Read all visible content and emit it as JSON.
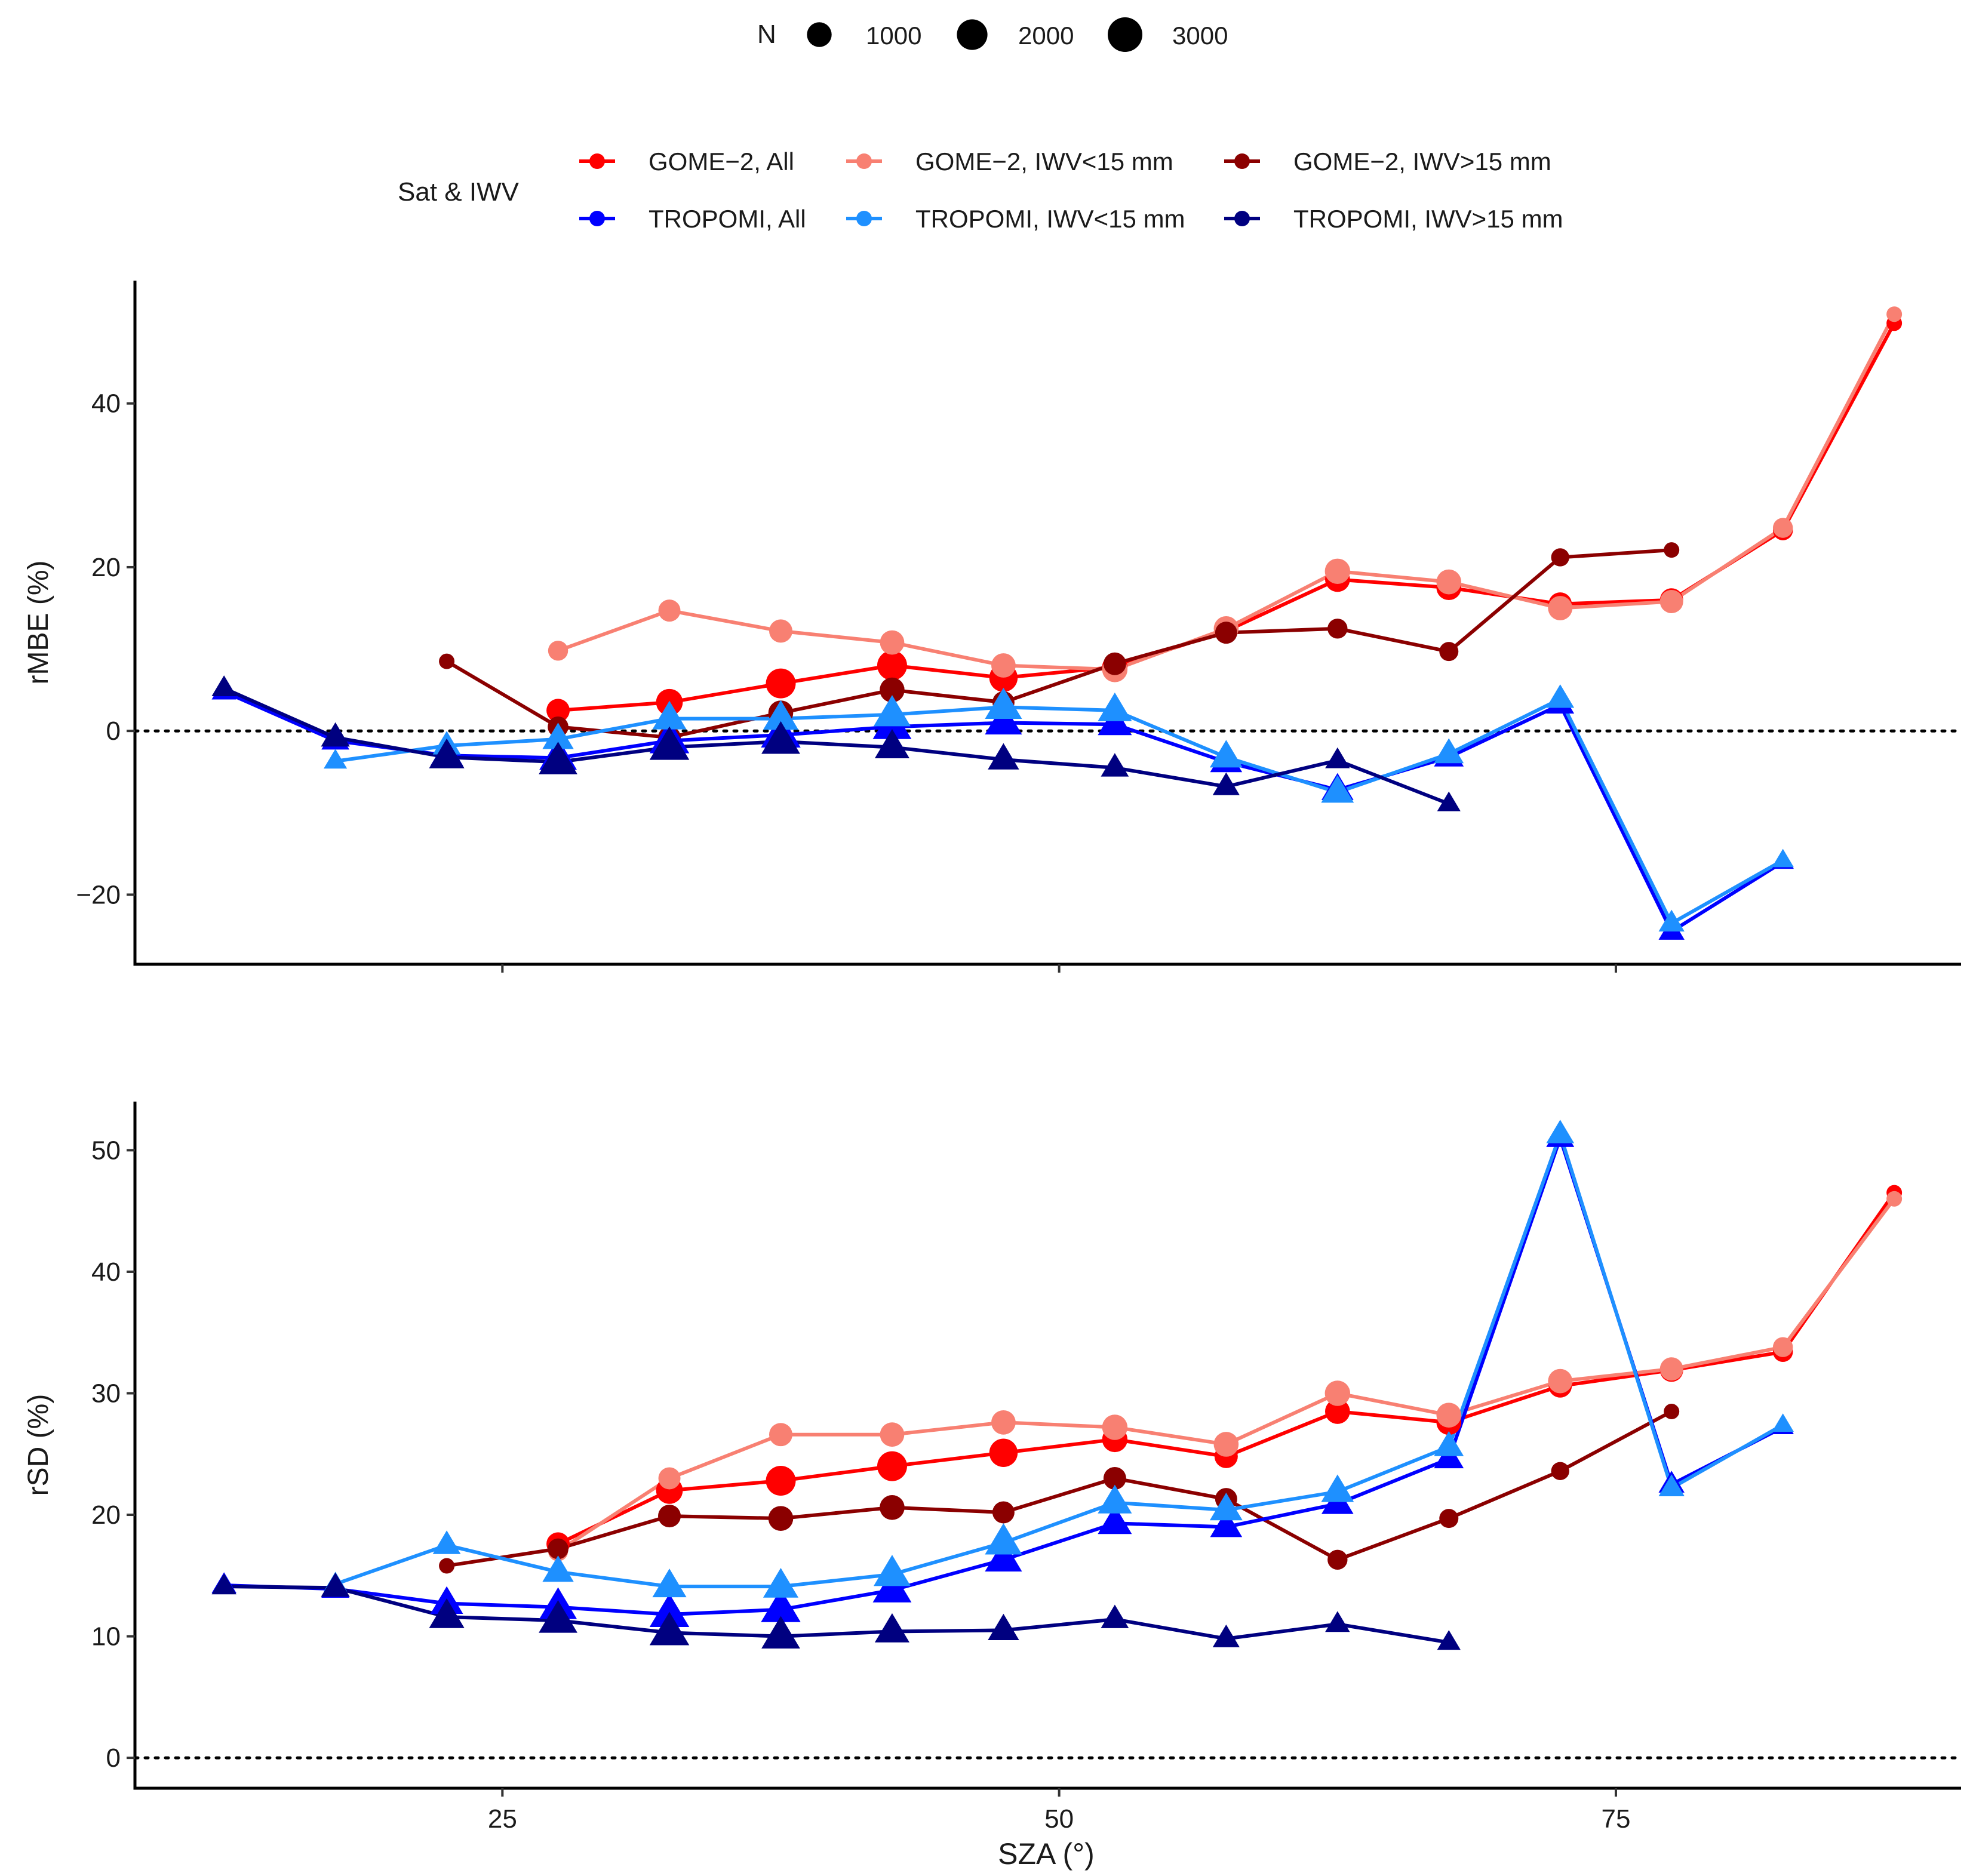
{
  "chart_data": {
    "type": "line",
    "xlabel": "SZA (°)",
    "x_ticks": [
      25,
      50,
      75
    ],
    "xlim": [
      8.5,
      90.5
    ],
    "size_legend": {
      "title": "N",
      "entries": [
        {
          "label": "1000",
          "value": 1000
        },
        {
          "label": "2000",
          "value": 2000
        },
        {
          "label": "3000",
          "value": 3000
        }
      ]
    },
    "color_legend": {
      "title": "Sat & IWV",
      "entries": [
        {
          "label": "GOME−2, All",
          "color": "#ff0000"
        },
        {
          "label": "GOME−2, IWV<15 mm",
          "color": "#f88072"
        },
        {
          "label": "GOME−2, IWV>15 mm",
          "color": "#8b0000"
        },
        {
          "label": "TROPOMI, All",
          "color": "#0000ff"
        },
        {
          "label": "TROPOMI, IWV<15 mm",
          "color": "#1e90ff"
        },
        {
          "label": "TROPOMI, IWV>15 mm",
          "color": "#000080"
        }
      ]
    },
    "panels": [
      {
        "ylabel": "rMBE (%)",
        "ylim": [
          -28.5,
          55
        ],
        "y_ticks": [
          -20,
          0,
          20,
          40
        ],
        "reference_line": 0,
        "series": [
          {
            "name": "GOME−2, All",
            "color": "#ff0000",
            "marker": "circle",
            "x": [
              27.5,
              32.5,
              37.5,
              42.5,
              47.5,
              52.5,
              57.5,
              62.5,
              67.5,
              72.5,
              77.5,
              82.5,
              87.5
            ],
            "y": [
              2.5,
              3.5,
              5.8,
              8.0,
              6.5,
              7.8,
              12.2,
              18.5,
              17.5,
              15.5,
              16.0,
              24.5,
              49.8
            ],
            "n": [
              1500,
              2200,
              3000,
              3000,
              2600,
              1900,
              1500,
              1800,
              1800,
              1500,
              1500,
              1000,
              600
            ]
          },
          {
            "name": "GOME−2, IWV<15 mm",
            "color": "#f88072",
            "marker": "circle",
            "x": [
              27.5,
              32.5,
              37.5,
              42.5,
              47.5,
              52.5,
              57.5,
              62.5,
              67.5,
              72.5,
              77.5,
              82.5,
              87.5
            ],
            "y": [
              9.8,
              14.7,
              12.2,
              10.8,
              8.0,
              7.5,
              12.5,
              19.5,
              18.2,
              15.0,
              15.8,
              24.8,
              50.9
            ],
            "n": [
              1000,
              1300,
              1500,
              1700,
              1700,
              1900,
              1800,
              1900,
              1800,
              1700,
              1500,
              1000,
              600
            ]
          },
          {
            "name": "GOME−2, IWV>15 mm",
            "color": "#8b0000",
            "marker": "circle",
            "x": [
              22.5,
              27.5,
              32.5,
              37.5,
              42.5,
              47.5,
              52.5,
              57.5,
              62.5,
              67.5,
              72.5,
              77.5
            ],
            "y": [
              8.5,
              0.5,
              -0.8,
              2.2,
              5.0,
              3.5,
              8.2,
              12.0,
              12.5,
              9.7,
              21.2,
              22.1
            ],
            "n": [
              600,
              1100,
              1400,
              1800,
              1800,
              1300,
              1400,
              1300,
              1000,
              900,
              800,
              600
            ]
          },
          {
            "name": "TROPOMI, All",
            "color": "#0000ff",
            "marker": "triangle",
            "x": [
              12.5,
              17.5,
              22.5,
              27.5,
              32.5,
              37.5,
              42.5,
              47.5,
              52.5,
              57.5,
              62.5,
              67.5,
              72.5,
              77.5,
              82.5
            ],
            "y": [
              4.8,
              -1.2,
              -3.0,
              -3.3,
              -1.2,
              -0.5,
              0.5,
              1.0,
              0.8,
              -3.8,
              -7.2,
              -3.2,
              3.2,
              -24.5,
              -16.0
            ],
            "n": [
              900,
              1200,
              1800,
              2600,
              3000,
              3000,
              2800,
              2500,
              2000,
              1700,
              1700,
              1400,
              1200,
              1000,
              700
            ]
          },
          {
            "name": "TROPOMI, IWV<15 mm",
            "color": "#1e90ff",
            "marker": "triangle",
            "x": [
              17.5,
              22.5,
              27.5,
              32.5,
              37.5,
              42.5,
              47.5,
              52.5,
              57.5,
              62.5,
              67.5,
              72.5,
              77.5,
              82.5
            ],
            "y": [
              -3.7,
              -1.8,
              -1.0,
              1.5,
              1.5,
              2.0,
              2.9,
              2.5,
              -3.2,
              -7.5,
              -2.8,
              3.9,
              -23.5,
              -15.8
            ],
            "n": [
              800,
              1200,
              1600,
              2000,
              2200,
              2500,
              2500,
              2000,
              1800,
              1800,
              1400,
              1200,
              1000,
              700
            ]
          },
          {
            "name": "TROPOMI, IWV>15 mm",
            "color": "#000080",
            "marker": "triangle",
            "x": [
              12.5,
              17.5,
              22.5,
              27.5,
              32.5,
              37.5,
              42.5,
              47.5,
              52.5,
              57.5,
              62.5,
              67.5
            ],
            "y": [
              5.2,
              -0.8,
              -3.2,
              -3.8,
              -2.0,
              -1.3,
              -2.0,
              -3.5,
              -4.5,
              -6.8,
              -3.6,
              -8.9
            ],
            "n": [
              900,
              1300,
              2200,
              2800,
              3000,
              2800,
              2100,
              1600,
              1200,
              1100,
              900,
              800
            ]
          }
        ]
      },
      {
        "ylabel": "rSD (%)",
        "ylim": [
          -2.5,
          54.0
        ],
        "y_ticks": [
          0,
          10,
          20,
          30,
          40,
          50
        ],
        "reference_line": 0,
        "series": [
          {
            "name": "GOME−2, All",
            "color": "#ff0000",
            "marker": "circle",
            "x": [
              27.5,
              32.5,
              37.5,
              42.5,
              47.5,
              52.5,
              57.5,
              62.5,
              67.5,
              72.5,
              77.5,
              82.5,
              87.5
            ],
            "y": [
              17.6,
              22.0,
              22.8,
              24.0,
              25.1,
              26.2,
              24.8,
              28.5,
              27.6,
              30.6,
              31.9,
              33.4,
              46.5
            ],
            "n": [
              1500,
              2200,
              3000,
              3000,
              2600,
              1900,
              1500,
              1800,
              1800,
              1500,
              1500,
              1000,
              600
            ]
          },
          {
            "name": "GOME−2, IWV<15 mm",
            "color": "#f88072",
            "marker": "circle",
            "x": [
              27.5,
              32.5,
              37.5,
              42.5,
              47.5,
              52.5,
              57.5,
              62.5,
              67.5,
              72.5,
              77.5,
              82.5,
              87.5
            ],
            "y": [
              17.0,
              23.0,
              26.6,
              26.6,
              27.6,
              27.2,
              25.8,
              30.0,
              28.2,
              31.0,
              32.0,
              33.8,
              46.0
            ],
            "n": [
              1000,
              1300,
              1500,
              1700,
              1700,
              1900,
              1800,
              1900,
              1800,
              1700,
              1500,
              1000,
              600
            ]
          },
          {
            "name": "GOME−2, IWV>15 mm",
            "color": "#8b0000",
            "marker": "circle",
            "x": [
              22.5,
              27.5,
              32.5,
              37.5,
              42.5,
              47.5,
              52.5,
              57.5,
              62.5,
              67.5,
              72.5,
              77.5
            ],
            "y": [
              15.8,
              17.2,
              19.9,
              19.7,
              20.6,
              20.2,
              23.0,
              21.3,
              16.3,
              19.7,
              23.6,
              28.5
            ],
            "n": [
              600,
              1100,
              1400,
              1800,
              1800,
              1300,
              1400,
              1300,
              1000,
              900,
              800,
              600
            ]
          },
          {
            "name": "TROPOMI, All",
            "color": "#0000ff",
            "marker": "triangle",
            "x": [
              12.5,
              17.5,
              22.5,
              27.5,
              32.5,
              37.5,
              42.5,
              47.5,
              52.5,
              57.5,
              62.5,
              67.5,
              72.5,
              77.5,
              82.5
            ],
            "y": [
              14.2,
              13.9,
              12.7,
              12.4,
              11.8,
              12.2,
              13.8,
              16.3,
              19.3,
              19.0,
              20.9,
              24.6,
              51.0,
              22.5,
              27.2
            ],
            "n": [
              900,
              1200,
              1800,
              2600,
              3000,
              3000,
              2800,
              2500,
              2000,
              1700,
              1700,
              1400,
              1200,
              1000,
              700
            ]
          },
          {
            "name": "TROPOMI, IWV<15 mm",
            "color": "#1e90ff",
            "marker": "triangle",
            "x": [
              17.5,
              22.5,
              27.5,
              32.5,
              37.5,
              42.5,
              47.5,
              52.5,
              57.5,
              62.5,
              67.5,
              72.5,
              77.5,
              82.5
            ],
            "y": [
              14.3,
              17.5,
              15.3,
              14.1,
              14.1,
              15.1,
              17.7,
              21.0,
              20.4,
              21.9,
              25.6,
              51.3,
              22.2,
              27.4
            ],
            "n": [
              800,
              1200,
              1600,
              2000,
              2200,
              2500,
              2500,
              2000,
              1800,
              1800,
              1400,
              1200,
              1000,
              700
            ]
          },
          {
            "name": "TROPOMI, IWV>15 mm",
            "color": "#000080",
            "marker": "triangle",
            "x": [
              12.5,
              17.5,
              22.5,
              27.5,
              32.5,
              37.5,
              42.5,
              47.5,
              52.5,
              57.5,
              62.5,
              67.5
            ],
            "y": [
              14.1,
              14.0,
              11.6,
              11.3,
              10.3,
              10.0,
              10.4,
              10.5,
              11.4,
              9.8,
              11.0,
              9.5
            ],
            "n": [
              900,
              1300,
              2200,
              2800,
              3000,
              2800,
              2100,
              1600,
              1200,
              1100,
              900,
              800
            ]
          }
        ]
      }
    ]
  }
}
